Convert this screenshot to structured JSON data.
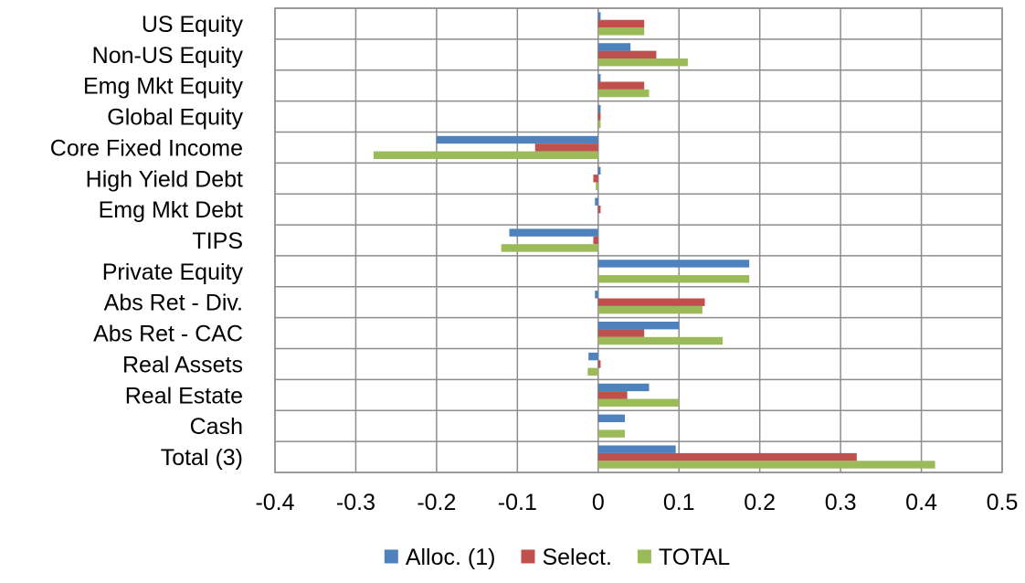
{
  "chart_data": {
    "type": "bar",
    "orientation": "horizontal",
    "categories": [
      "US Equity",
      "Non-US Equity",
      "Emg Mkt Equity",
      "Global Equity",
      "Core Fixed Income",
      "High Yield Debt",
      "Emg Mkt Debt",
      "TIPS",
      "Private Equity",
      "Abs Ret - Div.",
      "Abs Ret - CAC",
      "Real Assets",
      "Real Estate",
      "Cash",
      "Total (3)"
    ],
    "series": [
      {
        "name": "Alloc. (1)",
        "color": "#4f81bd",
        "values": [
          0.003,
          0.04,
          0.003,
          0.003,
          -0.2,
          0.003,
          -0.004,
          -0.11,
          0.187,
          -0.004,
          0.1,
          -0.012,
          0.063,
          0.033,
          0.096
        ]
      },
      {
        "name": "Select.",
        "color": "#c0504d",
        "values": [
          0.057,
          0.072,
          0.057,
          0.003,
          -0.078,
          -0.006,
          0.003,
          -0.006,
          0.0,
          0.132,
          0.057,
          0.003,
          0.036,
          0.0,
          0.32
        ]
      },
      {
        "name": "TOTAL",
        "color": "#9bbb59",
        "values": [
          0.057,
          0.111,
          0.063,
          0.003,
          -0.278,
          -0.003,
          0.0,
          -0.12,
          0.187,
          0.129,
          0.154,
          -0.013,
          0.1,
          0.033,
          0.417
        ]
      }
    ],
    "xlim": [
      -0.4,
      0.5
    ],
    "xticks": [
      "-0.4",
      "-0.3",
      "-0.2",
      "-0.1",
      "0",
      "0.1",
      "0.2",
      "0.3",
      "0.4",
      "0.5"
    ],
    "grid": true,
    "legend_position": "bottom"
  }
}
